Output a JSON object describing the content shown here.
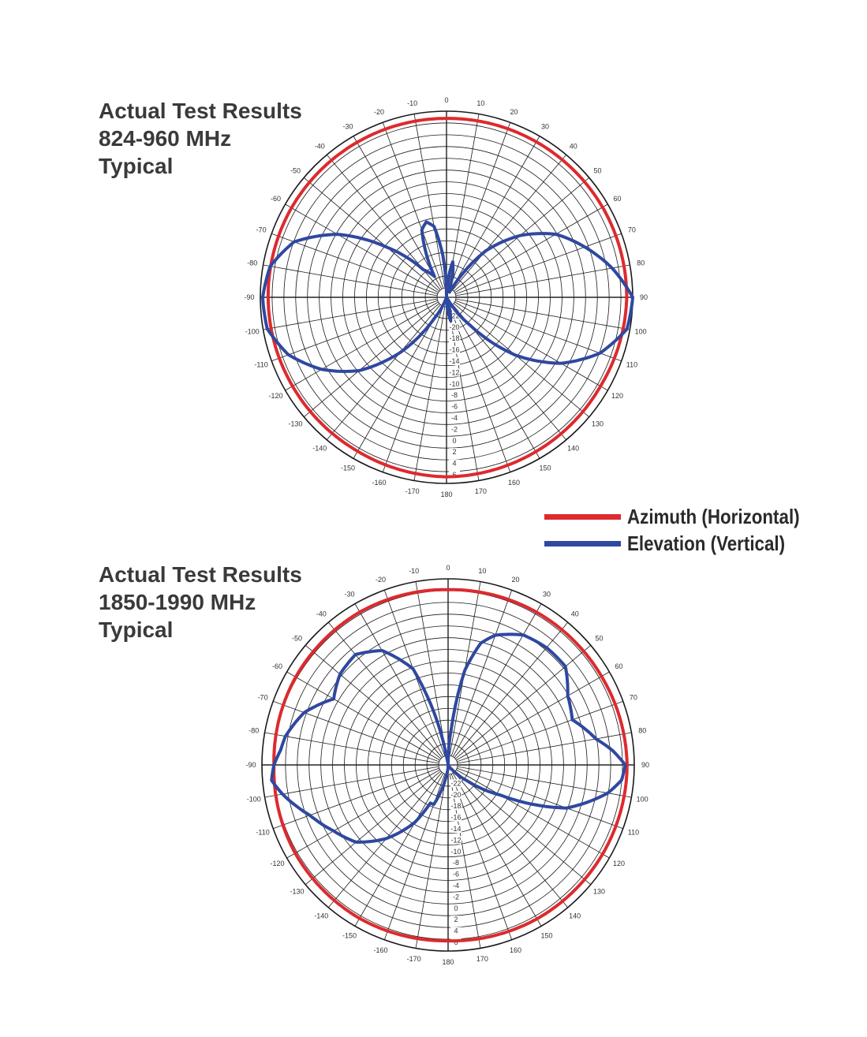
{
  "colors": {
    "azimuth": "#dd2a2e",
    "elevation": "#2f48a0",
    "grid": "#1a1a1a",
    "text": "#3a3a3a"
  },
  "legend": {
    "items": [
      {
        "label": "Azimuth (Horizontal)",
        "color": "#dd2a2e"
      },
      {
        "label": "Elevation (Vertical)",
        "color": "#2f48a0"
      }
    ]
  },
  "chart_data": [
    {
      "type": "polar-line",
      "title_lines": [
        "Actual Test Results",
        "824-960 MHz",
        "Typical"
      ],
      "angle_labels": [
        "0",
        "10",
        "20",
        "30",
        "40",
        "50",
        "60",
        "70",
        "80",
        "90",
        "100",
        "110",
        "120",
        "130",
        "140",
        "150",
        "160",
        "170",
        "180",
        "-170",
        "-160",
        "-150",
        "-140",
        "-130",
        "-120",
        "-110",
        "-100",
        "-90",
        "-80",
        "-70",
        "-60",
        "-50",
        "-40",
        "-30",
        "-20",
        "-10"
      ],
      "radial_labels": [
        "6",
        "4",
        "2",
        "0",
        "-2",
        "-4",
        "-6",
        "-8",
        "-10",
        "-12",
        "-14",
        "-16",
        "-18",
        "-20",
        "-22"
      ],
      "radial_range_db": [
        -25,
        6
      ],
      "grid": true,
      "series": [
        {
          "name": "Azimuth (Horizontal)",
          "color": "#dd2a2e",
          "angles_deg": [
            0,
            30,
            60,
            90,
            120,
            150,
            180,
            210,
            240,
            270,
            300,
            330,
            360
          ],
          "values_db": [
            4.8,
            4.9,
            5.0,
            5.0,
            4.6,
            4.7,
            4.9,
            4.6,
            4.6,
            4.7,
            4.8,
            4.8,
            4.8
          ]
        },
        {
          "name": "Elevation (Vertical)",
          "color": "#2f48a0",
          "angles_deg": [
            0,
            5,
            10,
            15,
            20,
            30,
            40,
            50,
            60,
            70,
            80,
            90,
            100,
            110,
            120,
            130,
            140,
            150,
            160,
            170,
            180,
            190,
            200,
            210,
            220,
            230,
            240,
            250,
            260,
            270,
            280,
            290,
            300,
            310,
            320,
            330,
            340,
            345,
            350,
            355,
            360
          ],
          "values_db": [
            -25,
            -22,
            -19,
            -21,
            -24,
            -24,
            -15,
            -9,
            -4,
            -0.5,
            3,
            6,
            5.5,
            2.2,
            -3,
            -10,
            -19,
            -25,
            -25,
            -21,
            -25,
            -25,
            -25,
            -21,
            -13,
            -6,
            -1,
            3,
            5.3,
            5.6,
            4.8,
            2,
            -4,
            -12,
            -19,
            -21,
            -13,
            -12,
            -13,
            -18,
            -25
          ]
        }
      ]
    },
    {
      "type": "polar-line",
      "title_lines": [
        "Actual Test Results",
        "1850-1990 MHz",
        "Typical"
      ],
      "angle_labels": [
        "0",
        "10",
        "20",
        "30",
        "40",
        "50",
        "60",
        "70",
        "80",
        "90",
        "100",
        "110",
        "120",
        "130",
        "140",
        "150",
        "160",
        "170",
        "180",
        "-170",
        "-160",
        "-150",
        "-140",
        "-130",
        "-120",
        "-110",
        "-100",
        "-90",
        "-80",
        "-70",
        "-60",
        "-50",
        "-40",
        "-30",
        "-20",
        "-10"
      ],
      "radial_labels": [
        "6",
        "4",
        "2",
        "0",
        "-2",
        "-4",
        "-6",
        "-8",
        "-10",
        "-12",
        "-14",
        "-16",
        "-18",
        "-20",
        "-22"
      ],
      "radial_range_db": [
        -25,
        6
      ],
      "grid": true,
      "series": [
        {
          "name": "Azimuth (Horizontal)",
          "color": "#dd2a2e",
          "angles_deg": [
            0,
            30,
            60,
            90,
            120,
            150,
            180,
            210,
            240,
            270,
            300,
            330,
            360
          ],
          "values_db": [
            4.2,
            4.4,
            4.5,
            4.8,
            4.7,
            4.6,
            4.3,
            4.5,
            4.4,
            4.0,
            4.3,
            4.4,
            4.2
          ]
        },
        {
          "name": "Elevation (Vertical)",
          "color": "#2f48a0",
          "angles_deg": [
            0,
            5,
            10,
            15,
            20,
            30,
            40,
            50,
            60,
            70,
            80,
            85,
            90,
            95,
            100,
            110,
            120,
            130,
            140,
            150,
            160,
            170,
            180,
            190,
            200,
            205,
            210,
            220,
            230,
            240,
            250,
            260,
            265,
            270,
            275,
            280,
            290,
            300,
            310,
            320,
            330,
            340,
            345,
            350,
            355,
            360
          ],
          "values_db": [
            -25,
            -19,
            -9,
            -4,
            -2,
            0,
            0.5,
            0.5,
            -2,
            -3,
            0,
            2.5,
            4.5,
            4,
            2,
            -4,
            -15,
            -21,
            -24,
            -25,
            -25,
            -25,
            -25,
            -23,
            -18,
            -18,
            -14,
            -9,
            -5,
            -3,
            -0.5,
            3,
            4.5,
            4,
            3,
            2.5,
            0.5,
            -3,
            -1.5,
            -1,
            -3,
            -8,
            -16,
            -24,
            -25,
            -25
          ]
        }
      ]
    }
  ]
}
